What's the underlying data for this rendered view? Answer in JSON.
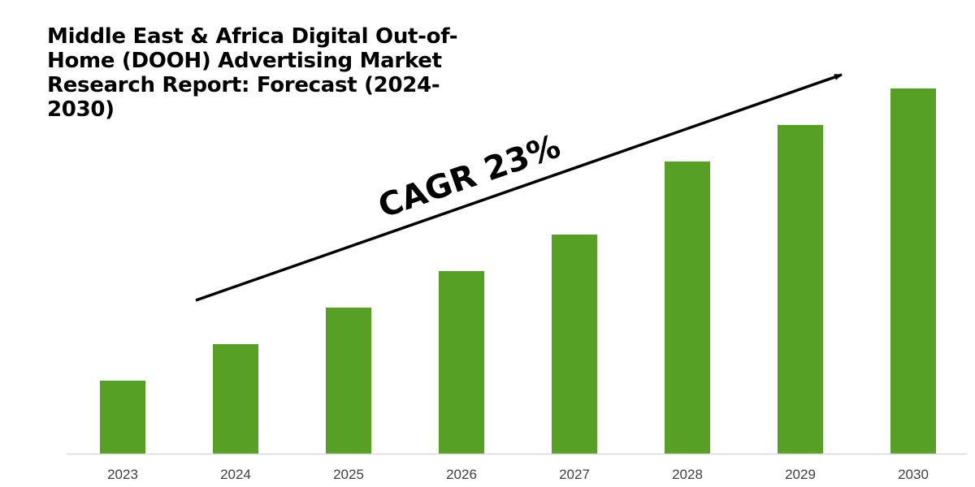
{
  "chart_data": {
    "type": "bar",
    "title": "Middle East & Africa Digital Out-of-Home (DOOH) Advertising Market Research Report: Forecast (2024-2030)",
    "categories": [
      "2023",
      "2024",
      "2025",
      "2026",
      "2027",
      "2028",
      "2029",
      "2030"
    ],
    "values": [
      1.0,
      1.5,
      2.0,
      2.5,
      3.0,
      4.0,
      4.5,
      5.0
    ],
    "bar_color": "#56a023",
    "axis_color": "#d9d9d9",
    "arrow_color": "#000000",
    "ylim": [
      0,
      5.1
    ],
    "grid": false,
    "legend": "none",
    "annotation": "CAGR 23%"
  }
}
